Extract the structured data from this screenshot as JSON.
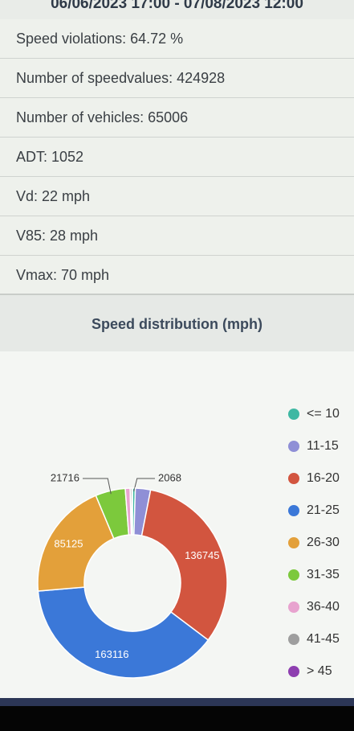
{
  "header": {
    "title": "06/06/2023 17:00 - 07/08/2023 12:00"
  },
  "stats": [
    "Speed violations: 64.72 %",
    "Number of speedvalues: 424928",
    "Number of vehicles: 65006",
    "ADT: 1052",
    "Vd: 22 mph",
    "V85: 28 mph",
    "Vmax: 70 mph"
  ],
  "chart_data": {
    "type": "donut",
    "title": "Speed distribution (mph)",
    "categories": [
      "<= 10",
      "11-15",
      "16-20",
      "21-25",
      "26-30",
      "31-35",
      "36-40",
      "41-45",
      "> 45"
    ],
    "values": [
      2068,
      11000,
      136745,
      163116,
      85125,
      21716,
      3500,
      1200,
      458
    ],
    "value_labels": [
      "2068",
      null,
      "136745",
      "163116",
      "85125",
      "21716",
      null,
      null,
      null
    ],
    "colors": [
      "#3fb8a3",
      "#8f8fd6",
      "#d2553f",
      "#3b78d8",
      "#e3a03a",
      "#7cc93c",
      "#e8a3cf",
      "#9e9e9e",
      "#8e3fb0"
    ],
    "legend": "right"
  }
}
